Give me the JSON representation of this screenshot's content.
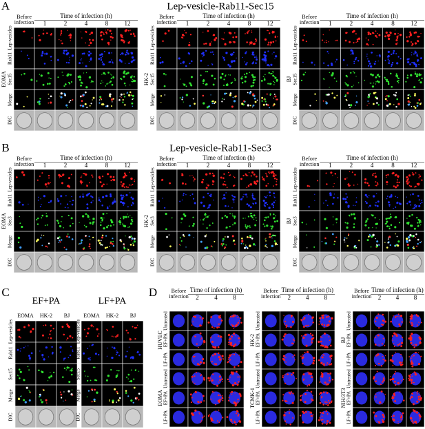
{
  "panel_a": {
    "label": "A",
    "title": "Lep-vesicle-Rab11-Sec15",
    "grids": [
      {
        "cell_line": "EOMA",
        "before": [
          "Before",
          "infection"
        ],
        "time_label": "Time of infection (h)",
        "times": [
          1,
          2,
          4,
          8,
          12
        ],
        "rows": [
          "Lep-vesicles",
          "Rab11",
          "Sec15",
          "Merge",
          "DIC"
        ]
      },
      {
        "cell_line": "HK-2",
        "before": [
          "Before",
          "infection"
        ],
        "time_label": "Time of infection (h)",
        "times": [
          1,
          2,
          4,
          8,
          12
        ],
        "rows": [
          "Lep-vesicles",
          "Rab11",
          "Sec15",
          "Merge",
          "DIC"
        ]
      },
      {
        "cell_line": "BJ",
        "before": [
          "Before",
          "infection"
        ],
        "time_label": "Time of infection (h)",
        "times": [
          1,
          2,
          4,
          8,
          12
        ],
        "rows": [
          "Lep-vesicles",
          "Rab11",
          "Sec15",
          "Merge",
          "DIC"
        ]
      }
    ]
  },
  "panel_b": {
    "label": "B",
    "title": "Lep-vesicle-Rab11-Sec3",
    "grids": [
      {
        "cell_line": "EOMA",
        "before": [
          "Before",
          "infection"
        ],
        "time_label": "Time of infection (h)",
        "times": [
          1,
          2,
          4,
          8,
          12
        ],
        "rows": [
          "Lep-vesicles",
          "Rab11",
          "Sec3",
          "Merge",
          "DIC"
        ]
      },
      {
        "cell_line": "HK-2",
        "before": [
          "Before",
          "infection"
        ],
        "time_label": "Time of infection (h)",
        "times": [
          1,
          2,
          4,
          8,
          12
        ],
        "rows": [
          "Lep-vesicles",
          "Rab11",
          "Sec3",
          "Merge",
          "DIC"
        ]
      },
      {
        "cell_line": "BJ",
        "before": [
          "Before",
          "infection"
        ],
        "time_label": "Time of infection (h)",
        "times": [
          1,
          2,
          4,
          8,
          12
        ],
        "rows": [
          "Lep-vesicles",
          "Rab11",
          "Sec3",
          "Merge",
          "DIC"
        ]
      }
    ]
  },
  "panel_c": {
    "label": "C",
    "rows": [
      "Lep-vesicles",
      "Rab11",
      "Sec15",
      "Merge",
      "DIC"
    ],
    "groups": [
      {
        "title": "EF+PA",
        "columns": [
          "EOMA",
          "HK-2",
          "BJ"
        ]
      },
      {
        "title": "LF+PA",
        "columns": [
          "EOMA",
          "HK-2",
          "BJ"
        ]
      }
    ]
  },
  "panel_d": {
    "label": "D",
    "grids": [
      {
        "before": [
          "Before",
          "infection"
        ],
        "time_label": "Time of infection (h)",
        "times": [
          2,
          4,
          8
        ],
        "cell_lines": [
          "HUVEC",
          "EOMA"
        ],
        "treatments": [
          "Untreated",
          "EF+PA",
          "LF+PA"
        ]
      },
      {
        "before": [
          "Before",
          "infection"
        ],
        "time_label": "Time of infection (h)",
        "times": [
          2,
          4,
          8
        ],
        "cell_lines": [
          "HK-2",
          "TCMK-1"
        ],
        "treatments": [
          "Untreated",
          "EF+PA",
          "LF+PA"
        ]
      },
      {
        "before": [
          "Before",
          "infection"
        ],
        "time_label": "Time of infection (h)",
        "times": [
          2,
          4,
          8
        ],
        "cell_lines": [
          "BJ",
          "NIH/3T3"
        ],
        "treatments": [
          "Untreated",
          "EF+PA",
          "LF+PA"
        ]
      }
    ]
  }
}
